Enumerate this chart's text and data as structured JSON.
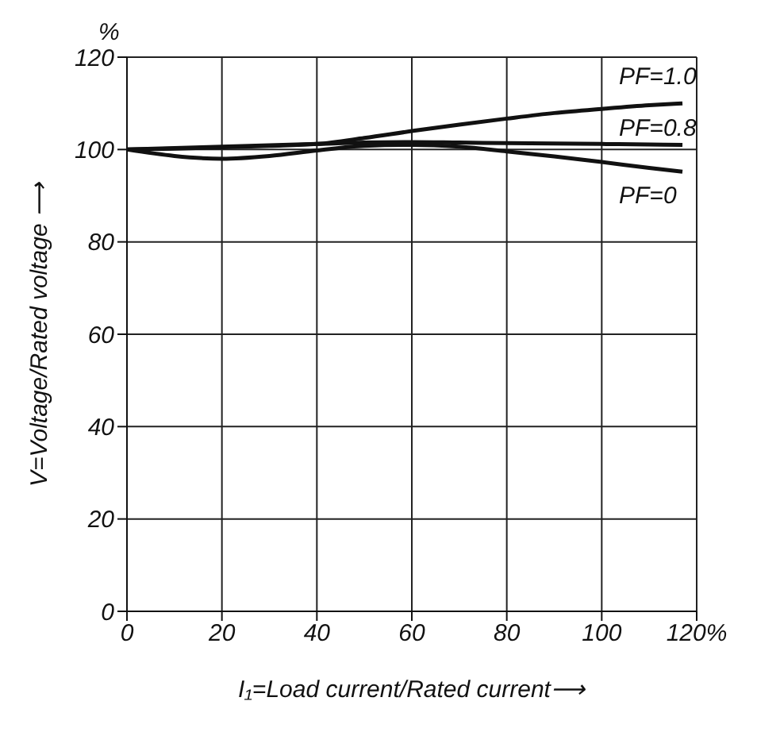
{
  "chart_data": {
    "type": "line",
    "xlabel": "I₁=Load current/Rated current⟶",
    "ylabel": "V=Voltage/Rated voltage ⟶",
    "annotations": [
      "%"
    ],
    "x": [
      0,
      10,
      20,
      30,
      40,
      50,
      60,
      70,
      80,
      90,
      100,
      110,
      117
    ],
    "series": [
      {
        "name": "PF=1.0",
        "color": "#111111",
        "values": [
          100,
          100.2,
          100.5,
          100.8,
          101.2,
          102.5,
          104,
          105.4,
          106.7,
          107.9,
          108.8,
          109.6,
          110
        ]
      },
      {
        "name": "PF=0.8",
        "color": "#111111",
        "values": [
          100,
          100.3,
          100.6,
          100.9,
          101.2,
          101.5,
          101.6,
          101.5,
          101.4,
          101.3,
          101.2,
          101.1,
          101
        ]
      },
      {
        "name": "PF=0",
        "color": "#111111",
        "values": [
          100,
          98.6,
          98,
          98.6,
          99.8,
          100.8,
          101,
          100.6,
          99.6,
          98.5,
          97.3,
          96,
          95.2
        ]
      }
    ],
    "xlim": [
      0,
      120
    ],
    "xticks": [
      0,
      20,
      40,
      60,
      80,
      100,
      {
        "value": 120,
        "label": "120%"
      }
    ],
    "ylim": [
      0,
      120
    ],
    "yticks": [
      0,
      20,
      40,
      60,
      80,
      100,
      120
    ],
    "grid": true,
    "legend": false,
    "marker": "none",
    "line_style": "solid"
  }
}
